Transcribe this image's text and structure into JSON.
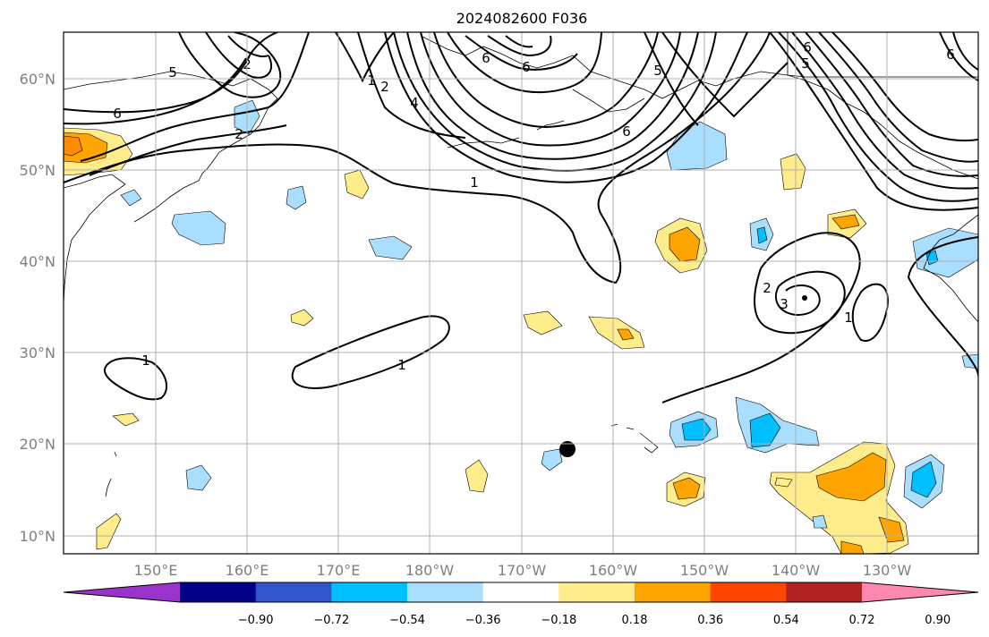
{
  "title": "2024082600 F036",
  "axes": {
    "lat_labels": [
      "60°N",
      "50°N",
      "40°N",
      "30°N",
      "20°N",
      "10°N"
    ],
    "lon_labels": [
      "150°E",
      "160°E",
      "170°E",
      "180°W",
      "170°W",
      "160°W",
      "150°W",
      "140°W",
      "130°W"
    ]
  },
  "colorbar": {
    "labels": [
      "−0.90",
      "−0.72",
      "−0.54",
      "−0.36",
      "−0.18",
      "0.18",
      "0.36",
      "0.54",
      "0.72",
      "0.90"
    ],
    "colors": [
      "#9933cc",
      "#000088",
      "#3355cc",
      "#00bfff",
      "#aadeff",
      "#ffffff",
      "#ffec8a",
      "#ffa500",
      "#ff4500",
      "#b22222",
      "#ff88b0"
    ]
  },
  "contour_labels": [
    "6",
    "5",
    "2",
    "2",
    "1",
    "2",
    "4",
    "6",
    "6",
    "6",
    "5",
    "6",
    "5",
    "1",
    "1",
    "1",
    "2",
    "3",
    "1",
    "6"
  ],
  "colors": {
    "light_blue": "#aadeff",
    "cyan": "#00bfff",
    "light_yellow": "#ffec8a",
    "orange": "#ffa500",
    "dark_orange": "#ff8c00"
  }
}
